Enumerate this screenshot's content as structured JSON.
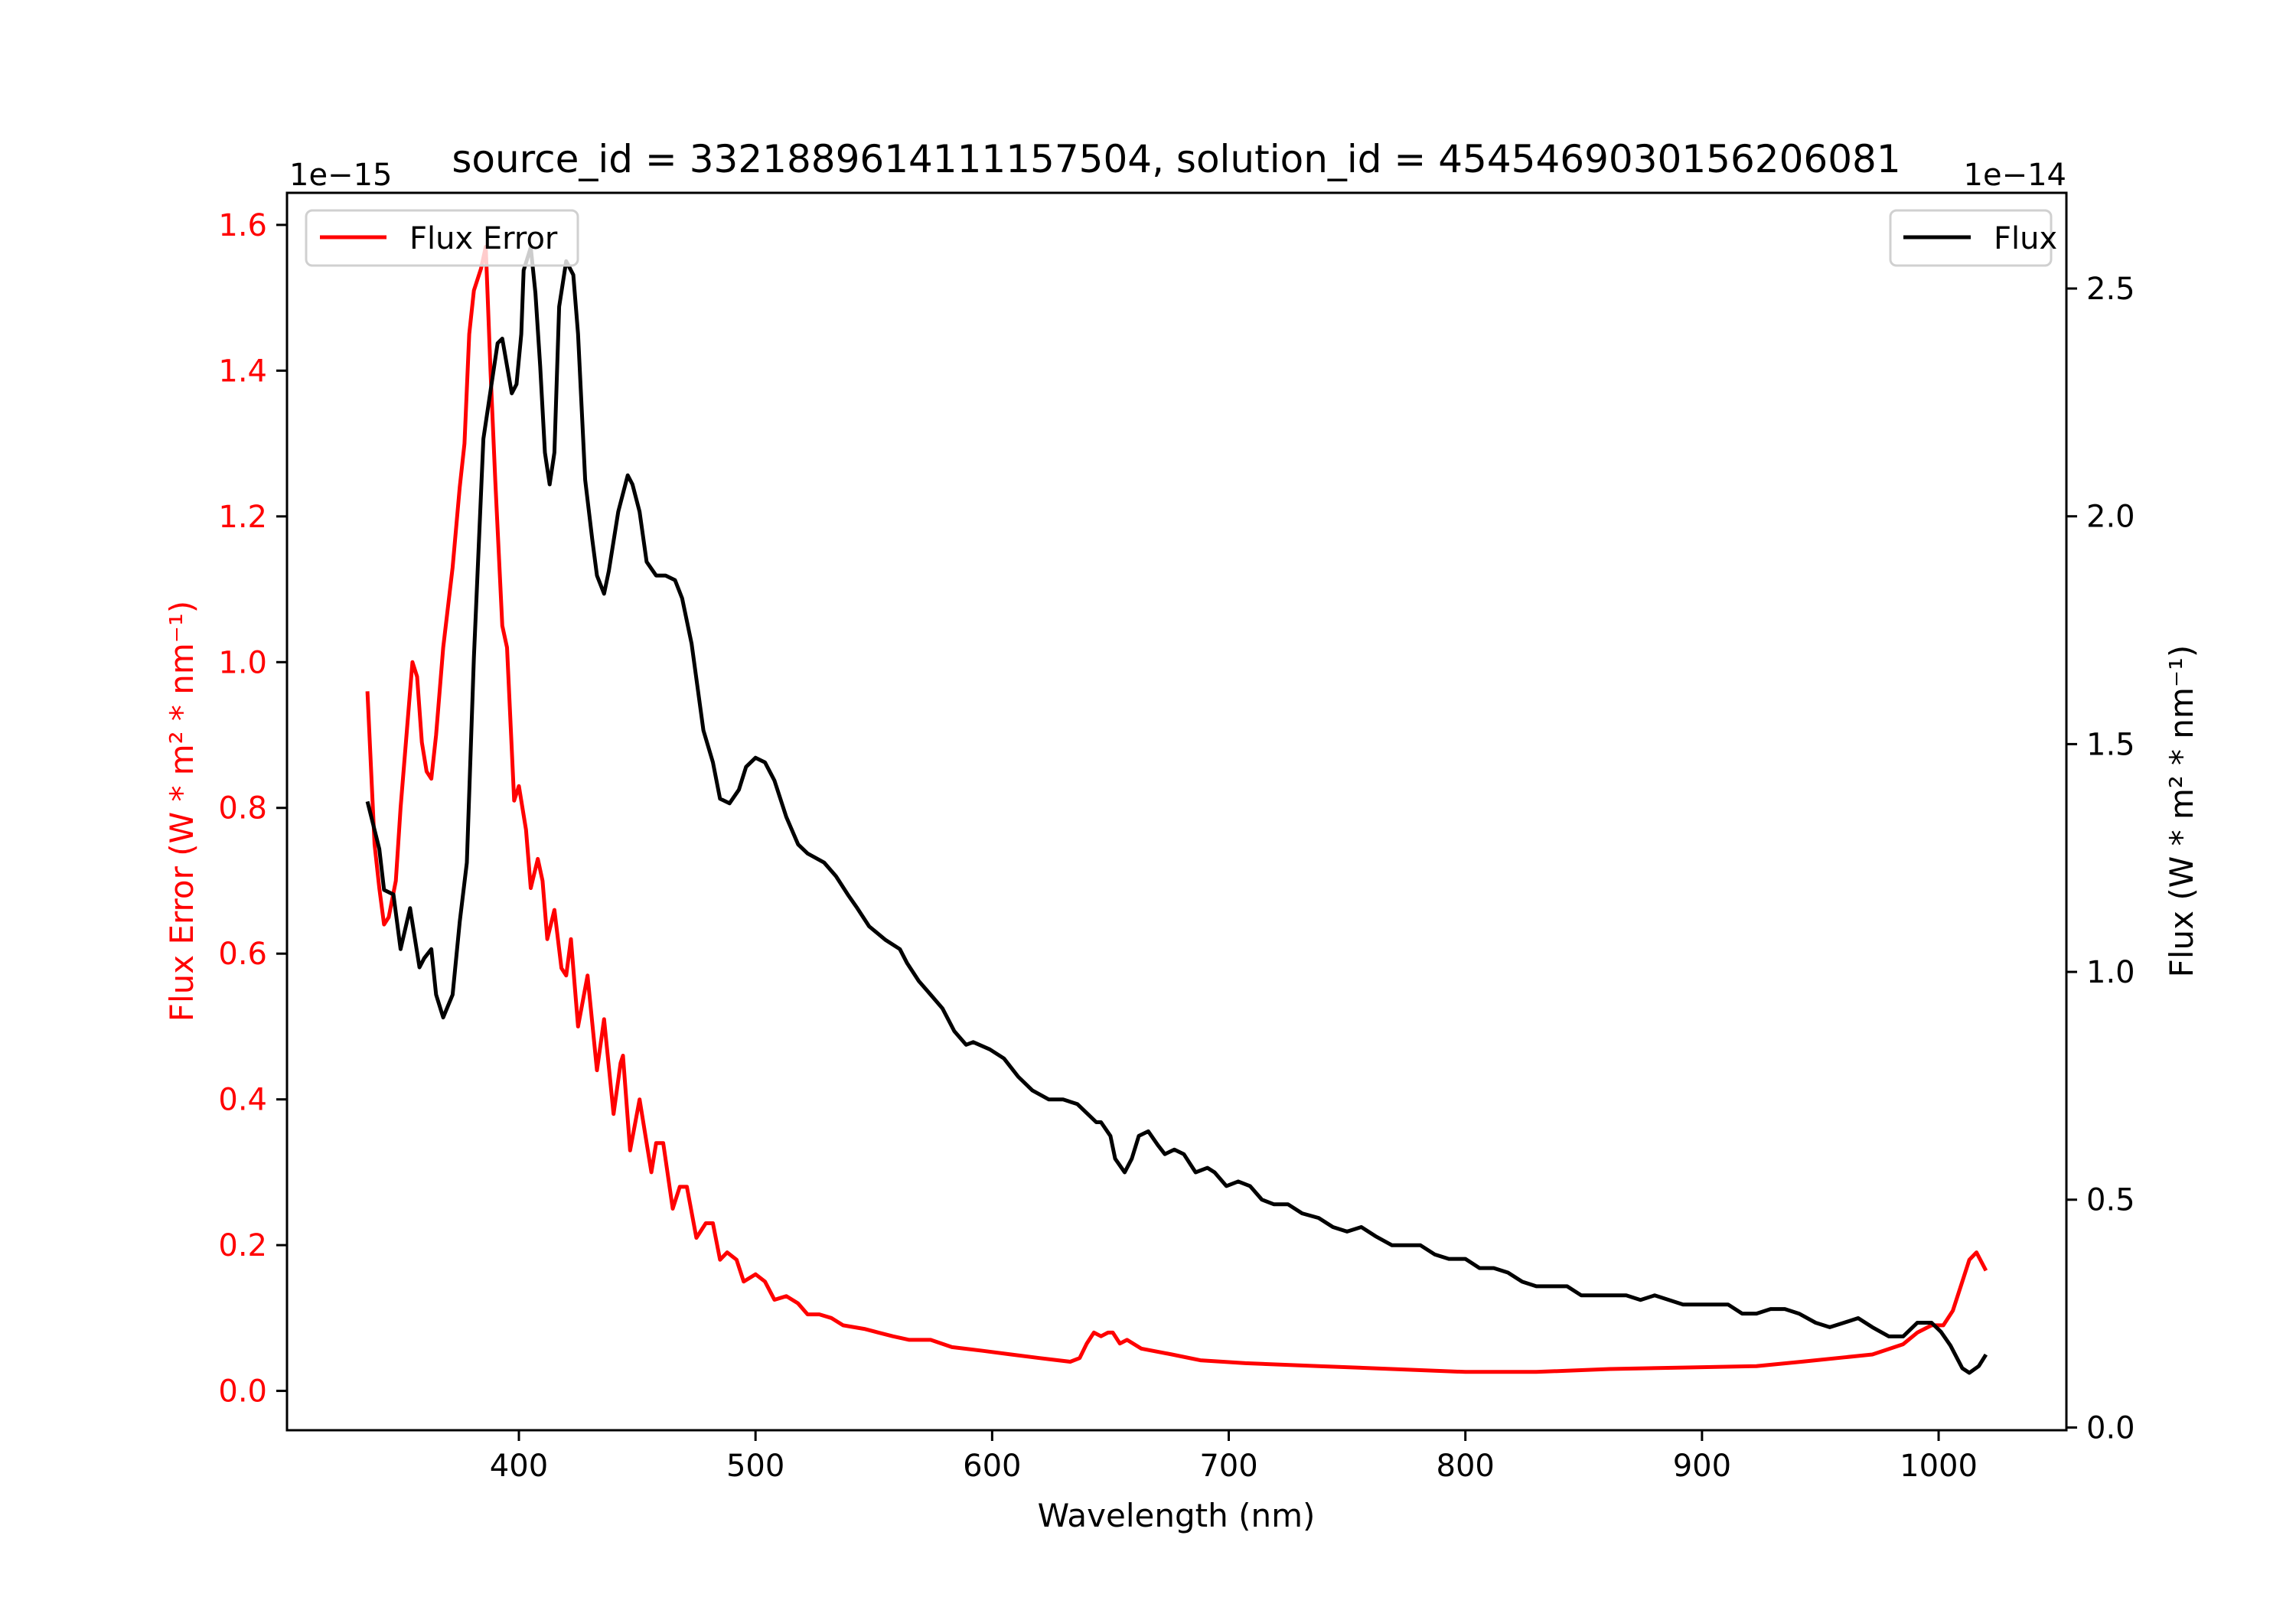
{
  "chart_data": {
    "type": "line",
    "title": "source_id = 3321889614111157504, solution_id = 4545469030156206081",
    "xlabel": "Wavelength (nm)",
    "xlim": [
      302,
      1054
    ],
    "xticks": [
      400,
      500,
      600,
      700,
      800,
      900,
      1000
    ],
    "left_axis": {
      "label": "Flux Error (W * m² * nm⁻¹)",
      "offset_label": "1e−15",
      "ylim": [
        -0.054,
        1.644
      ],
      "ticks": [
        0.0,
        0.2,
        0.4,
        0.6,
        0.8,
        1.0,
        1.2,
        1.4,
        1.6
      ],
      "color": "#ff0000"
    },
    "right_axis": {
      "label": "Flux (W * m² * nm⁻¹)",
      "offset_label": "1e−14",
      "ylim": [
        -0.006,
        2.71
      ],
      "ticks": [
        0.0,
        0.5,
        1.0,
        1.5,
        2.0,
        2.5
      ],
      "color": "#000000"
    },
    "legend": [
      {
        "label": "Flux Error",
        "placement": "upper-left",
        "color": "#ff0000"
      },
      {
        "label": "Flux",
        "placement": "upper-right",
        "color": "#000000"
      }
    ],
    "series": [
      {
        "name": "Flux Error",
        "axis": "left",
        "color": "#ff0000",
        "x": [
          336,
          339,
          341,
          343,
          345,
          348,
          350,
          353,
          355,
          357,
          359,
          361,
          363,
          365,
          368,
          372,
          375,
          377,
          379,
          381,
          384,
          386,
          388,
          390,
          393,
          395,
          398,
          400,
          403,
          405,
          408,
          410,
          412,
          415,
          418,
          420,
          422,
          425,
          429,
          433,
          436,
          440,
          443,
          444,
          447,
          451,
          456,
          458,
          461,
          465,
          468,
          471,
          475,
          479,
          482,
          485,
          488,
          492,
          495,
          500,
          504,
          508,
          513,
          518,
          522,
          527,
          532,
          537,
          546,
          552,
          558,
          565,
          574,
          583,
          596,
          608,
          620,
          633,
          637,
          640,
          643,
          646,
          649,
          651,
          654,
          657,
          663,
          676,
          688,
          707,
          738,
          769,
          800,
          830,
          861,
          892,
          923,
          942,
          960,
          972,
          985,
          991,
          997,
          1002,
          1006,
          1010,
          1013,
          1016,
          1020
        ],
        "y": [
          0.96,
          0.75,
          0.69,
          0.64,
          0.65,
          0.7,
          0.8,
          0.92,
          1.0,
          0.98,
          0.89,
          0.85,
          0.84,
          0.9,
          1.02,
          1.13,
          1.24,
          1.3,
          1.45,
          1.51,
          1.54,
          1.57,
          1.4,
          1.25,
          1.05,
          1.02,
          0.81,
          0.83,
          0.77,
          0.69,
          0.73,
          0.7,
          0.62,
          0.66,
          0.58,
          0.57,
          0.62,
          0.5,
          0.57,
          0.44,
          0.51,
          0.38,
          0.45,
          0.46,
          0.33,
          0.4,
          0.3,
          0.34,
          0.34,
          0.25,
          0.28,
          0.28,
          0.21,
          0.23,
          0.23,
          0.18,
          0.19,
          0.18,
          0.15,
          0.16,
          0.15,
          0.125,
          0.13,
          0.12,
          0.105,
          0.105,
          0.1,
          0.09,
          0.085,
          0.08,
          0.075,
          0.07,
          0.07,
          0.06,
          0.055,
          0.05,
          0.045,
          0.04,
          0.045,
          0.065,
          0.08,
          0.075,
          0.08,
          0.08,
          0.065,
          0.07,
          0.058,
          0.05,
          0.042,
          0.038,
          0.034,
          0.03,
          0.026,
          0.026,
          0.03,
          0.032,
          0.034,
          0.04,
          0.046,
          0.05,
          0.064,
          0.08,
          0.09,
          0.09,
          0.11,
          0.15,
          0.18,
          0.19,
          0.165
        ]
      },
      {
        "name": "Flux",
        "axis": "right",
        "color": "#000000",
        "x": [
          336,
          341,
          343,
          347,
          350,
          354,
          358,
          360,
          363,
          365,
          368,
          372,
          375,
          378,
          381,
          385,
          391,
          393,
          397,
          399,
          401,
          402,
          405,
          407,
          409,
          411,
          413,
          415,
          417,
          420,
          423,
          425,
          428,
          431,
          433,
          436,
          438,
          442,
          446,
          448,
          451,
          454,
          458,
          462,
          466,
          469,
          473,
          478,
          482,
          485,
          489,
          493,
          496,
          500,
          504,
          508,
          513,
          518,
          522,
          529,
          534,
          539,
          543,
          548,
          555,
          561,
          564,
          569,
          574,
          579,
          584,
          589,
          592,
          599,
          605,
          611,
          617,
          624,
          630,
          636,
          640,
          644,
          646,
          650,
          652,
          656,
          659,
          662,
          666,
          670,
          673,
          677,
          681,
          686,
          691,
          694,
          699,
          704,
          709,
          714,
          719,
          725,
          731,
          738,
          744,
          750,
          756,
          762,
          769,
          775,
          781,
          787,
          793,
          800,
          806,
          812,
          818,
          824,
          830,
          837,
          843,
          849,
          855,
          861,
          868,
          874,
          880,
          886,
          892,
          898,
          904,
          911,
          917,
          923,
          929,
          935,
          941,
          948,
          954,
          960,
          966,
          972,
          979,
          985,
          991,
          997,
          1001,
          1005,
          1010,
          1013,
          1017,
          1020
        ],
        "y": [
          1.374,
          1.27,
          1.18,
          1.17,
          1.05,
          1.14,
          1.01,
          1.03,
          1.05,
          0.95,
          0.9,
          0.95,
          1.11,
          1.24,
          1.69,
          2.17,
          2.38,
          2.39,
          2.27,
          2.29,
          2.4,
          2.54,
          2.59,
          2.49,
          2.33,
          2.14,
          2.07,
          2.14,
          2.46,
          2.56,
          2.53,
          2.4,
          2.08,
          1.95,
          1.87,
          1.83,
          1.88,
          2.01,
          2.09,
          2.07,
          2.01,
          1.9,
          1.87,
          1.87,
          1.86,
          1.82,
          1.72,
          1.53,
          1.46,
          1.38,
          1.37,
          1.4,
          1.45,
          1.47,
          1.46,
          1.42,
          1.34,
          1.28,
          1.26,
          1.24,
          1.21,
          1.17,
          1.14,
          1.1,
          1.07,
          1.05,
          1.02,
          0.98,
          0.95,
          0.92,
          0.87,
          0.84,
          0.846,
          0.83,
          0.81,
          0.77,
          0.74,
          0.72,
          0.72,
          0.71,
          0.69,
          0.67,
          0.67,
          0.64,
          0.59,
          0.56,
          0.59,
          0.64,
          0.65,
          0.62,
          0.6,
          0.61,
          0.6,
          0.56,
          0.57,
          0.56,
          0.53,
          0.54,
          0.53,
          0.5,
          0.49,
          0.49,
          0.47,
          0.46,
          0.44,
          0.43,
          0.44,
          0.42,
          0.4,
          0.4,
          0.4,
          0.38,
          0.37,
          0.37,
          0.35,
          0.35,
          0.34,
          0.32,
          0.31,
          0.31,
          0.31,
          0.29,
          0.29,
          0.29,
          0.29,
          0.28,
          0.29,
          0.28,
          0.27,
          0.27,
          0.27,
          0.27,
          0.25,
          0.25,
          0.26,
          0.26,
          0.25,
          0.23,
          0.22,
          0.23,
          0.24,
          0.22,
          0.2,
          0.2,
          0.23,
          0.23,
          0.21,
          0.18,
          0.13,
          0.12,
          0.135,
          0.16
        ]
      }
    ]
  }
}
